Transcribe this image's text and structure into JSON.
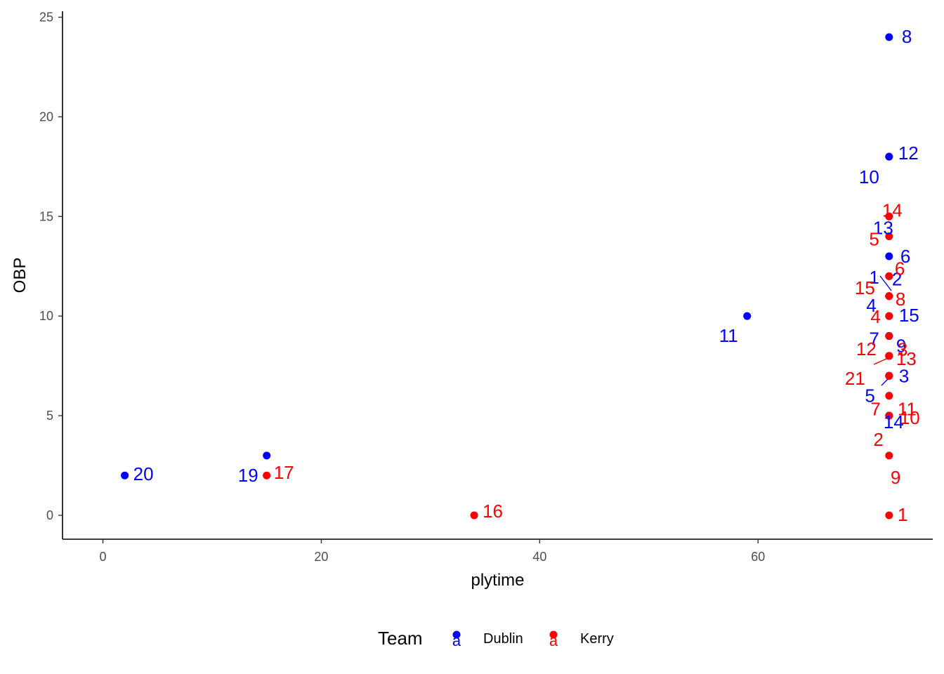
{
  "chart_data": {
    "type": "scatter",
    "title": "",
    "xlabel": "plytime",
    "ylabel": "OBP",
    "xlim": [
      -3.7,
      76
    ],
    "ylim": [
      -1.2,
      25.3
    ],
    "xticks": [
      0,
      20,
      40,
      60
    ],
    "yticks": [
      0,
      5,
      10,
      15,
      20,
      25
    ],
    "grid": false,
    "legend": {
      "title": "Team",
      "position": "bottom",
      "entries": [
        {
          "name": "Dublin",
          "color": "#0000FF",
          "key_glyph": "a"
        },
        {
          "name": "Kerry",
          "color": "#FF0000",
          "key_glyph": "a"
        }
      ]
    },
    "series": [
      {
        "name": "Dublin",
        "color": "#0000FF",
        "points": [
          {
            "x": 72,
            "y": 24,
            "label": "8"
          },
          {
            "x": 72,
            "y": 18,
            "label": "12"
          },
          {
            "x": 72,
            "y": 18,
            "label": "10"
          },
          {
            "x": 72,
            "y": 15,
            "label": "13"
          },
          {
            "x": 72,
            "y": 13,
            "label": "6"
          },
          {
            "x": 72,
            "y": 12,
            "label": "2"
          },
          {
            "x": 72,
            "y": 11,
            "label": "1"
          },
          {
            "x": 72,
            "y": 11,
            "label": "4"
          },
          {
            "x": 72,
            "y": 10,
            "label": "15"
          },
          {
            "x": 72,
            "y": 9,
            "label": "7"
          },
          {
            "x": 72,
            "y": 9,
            "label": "9"
          },
          {
            "x": 72,
            "y": 7,
            "label": "3"
          },
          {
            "x": 72,
            "y": 7,
            "label": "5"
          },
          {
            "x": 72,
            "y": 5,
            "label": "14"
          },
          {
            "x": 59,
            "y": 10,
            "label": "11"
          },
          {
            "x": 15,
            "y": 3,
            "label": "19"
          },
          {
            "x": 2,
            "y": 2,
            "label": "20"
          }
        ]
      },
      {
        "name": "Kerry",
        "color": "#FF0000",
        "points": [
          {
            "x": 72,
            "y": 15,
            "label": "14"
          },
          {
            "x": 72,
            "y": 14,
            "label": "5"
          },
          {
            "x": 72,
            "y": 12,
            "label": "6"
          },
          {
            "x": 72,
            "y": 11,
            "label": "15"
          },
          {
            "x": 72,
            "y": 11,
            "label": "8"
          },
          {
            "x": 72,
            "y": 10,
            "label": "4"
          },
          {
            "x": 72,
            "y": 9,
            "label": "3"
          },
          {
            "x": 72,
            "y": 8,
            "label": "12"
          },
          {
            "x": 72,
            "y": 8,
            "label": "13"
          },
          {
            "x": 72,
            "y": 8,
            "label": "21"
          },
          {
            "x": 72,
            "y": 7,
            "label": "7"
          },
          {
            "x": 72,
            "y": 6,
            "label": "11"
          },
          {
            "x": 72,
            "y": 5,
            "label": "10"
          },
          {
            "x": 72,
            "y": 5,
            "label": "2"
          },
          {
            "x": 72,
            "y": 3,
            "label": "9"
          },
          {
            "x": 72,
            "y": 0,
            "label": "1"
          },
          {
            "x": 34,
            "y": 0,
            "label": "16"
          },
          {
            "x": 15,
            "y": 2,
            "label": "17"
          }
        ]
      }
    ]
  }
}
